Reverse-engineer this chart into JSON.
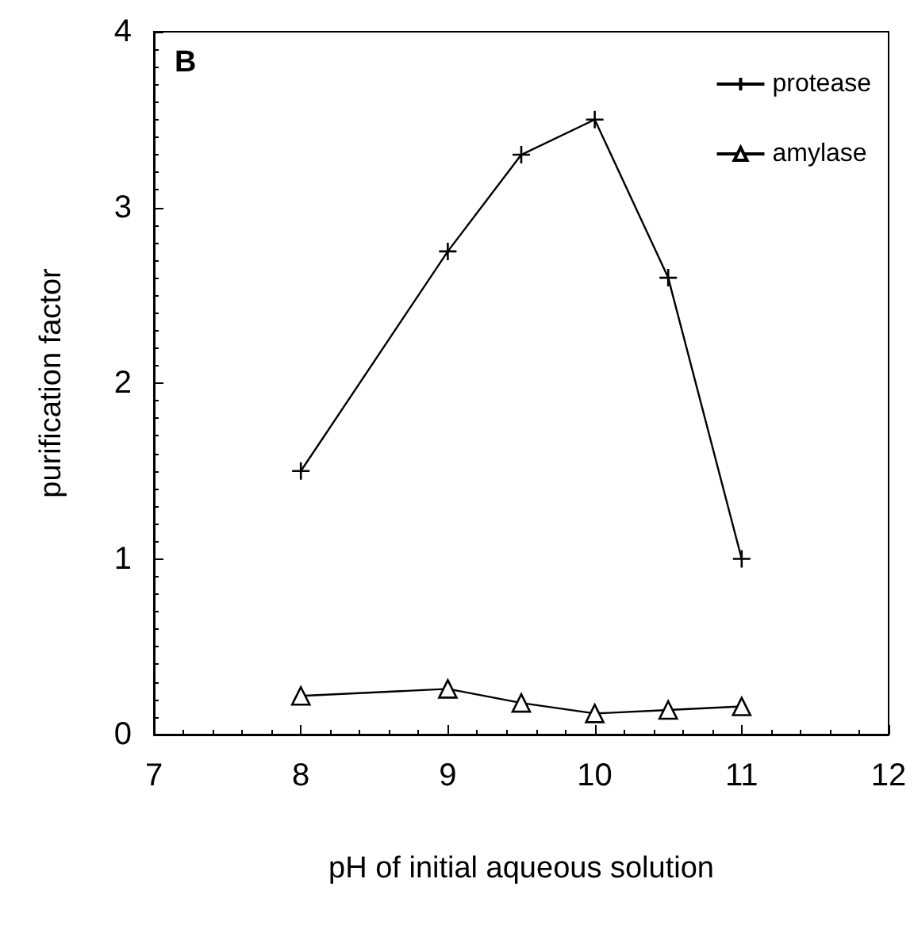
{
  "chart_data": {
    "type": "line",
    "xlabel": "pH of initial aqueous solution",
    "ylabel": "purification factor",
    "annotations": [
      "B"
    ],
    "xlim": [
      7,
      12
    ],
    "xticks": [
      7,
      8,
      9,
      10,
      11,
      12
    ],
    "ylim": [
      0,
      4
    ],
    "yticks": [
      0,
      1,
      2,
      3,
      4
    ],
    "x": [
      8,
      9,
      9.5,
      10,
      10.5,
      11
    ],
    "series": [
      {
        "name": "protease",
        "color": "#000000",
        "marker": "cross",
        "values": [
          1.5,
          2.75,
          3.3,
          3.5,
          2.6,
          1.0
        ]
      },
      {
        "name": "amylase",
        "color": "#000000",
        "marker": "triangle",
        "values": [
          0.22,
          0.26,
          0.18,
          0.12,
          0.14,
          0.16
        ]
      }
    ],
    "grid": false,
    "legend": "top right",
    "line_style": "solid"
  }
}
